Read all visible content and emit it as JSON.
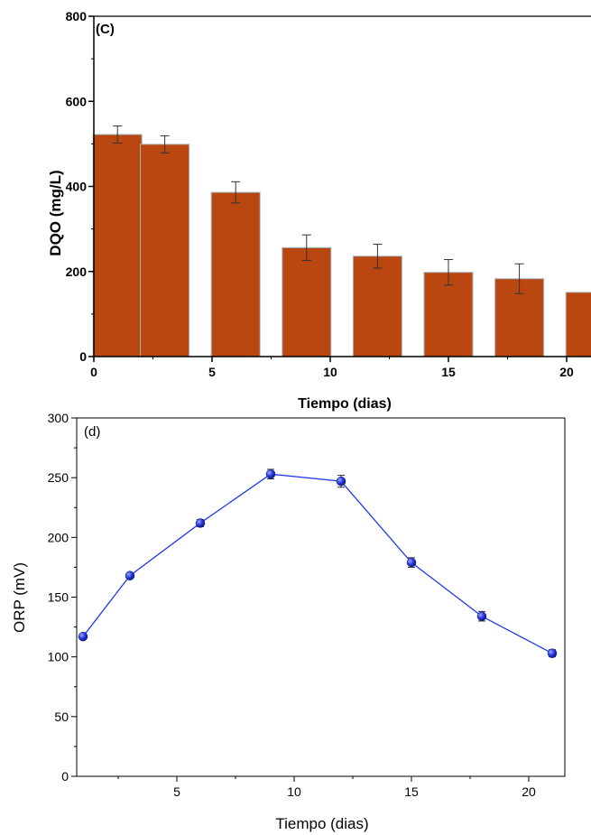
{
  "chart_data": [
    {
      "type": "bar",
      "panel_label": "(C)",
      "xlabel": "Tiempo (dias)",
      "ylabel": "DQO (mg/L)",
      "xlim": [
        0,
        21
      ],
      "ylim": [
        0,
        800
      ],
      "xticks": [
        0,
        5,
        10,
        15,
        20
      ],
      "yticks": [
        0,
        200,
        400,
        600,
        800
      ],
      "bar_color": "#B9470F",
      "categories": [
        1,
        3,
        6,
        9,
        12,
        15,
        18,
        21
      ],
      "values": [
        522,
        499,
        386,
        256,
        236,
        198,
        183,
        151
      ],
      "errors": [
        20,
        20,
        25,
        30,
        28,
        30,
        35,
        0
      ]
    },
    {
      "type": "line",
      "panel_label": "(d)",
      "xlabel": "Tiempo (dias)",
      "ylabel": "ORP (mV)",
      "xlim": [
        0.8,
        21.5
      ],
      "ylim": [
        0,
        300
      ],
      "xticks": [
        5,
        10,
        15,
        20
      ],
      "yticks": [
        0,
        50,
        100,
        150,
        200,
        250,
        300
      ],
      "line_color": "#1F3BE8",
      "x": [
        1,
        3,
        6,
        9,
        12,
        15,
        18,
        21
      ],
      "y": [
        117,
        168,
        212,
        253,
        247,
        179,
        134,
        103
      ],
      "errors": [
        2,
        2,
        3,
        4,
        5,
        4,
        4,
        3
      ]
    }
  ]
}
